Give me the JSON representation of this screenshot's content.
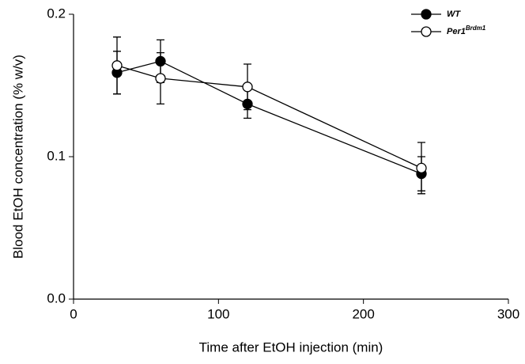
{
  "chart_data": {
    "type": "line",
    "x_label": "Time after EtOH injection (min)",
    "y_label": "Blood EtOH concentration (% w/v)",
    "xlim": [
      0,
      300
    ],
    "xticks": [
      0,
      100,
      200,
      300
    ],
    "ylim": [
      0,
      0.2
    ],
    "yticks": [
      {
        "value": 0,
        "label": "0.0"
      },
      0.1,
      0.2
    ],
    "x": [
      30,
      60,
      120,
      240
    ],
    "series": [
      {
        "name": "WT",
        "color": "#000000",
        "marker": "filled",
        "values": [
          0.159,
          0.167,
          0.137,
          0.088
        ],
        "errors": [
          0.015,
          0.015,
          0.01,
          0.012
        ]
      },
      {
        "name": "Per1",
        "name_superscript": "Brdm1",
        "color": "#000000",
        "marker": "open",
        "values": [
          0.164,
          0.155,
          0.149,
          0.092
        ],
        "errors": [
          0.02,
          0.018,
          0.016,
          0.018
        ]
      }
    ],
    "legend": "top-right"
  }
}
